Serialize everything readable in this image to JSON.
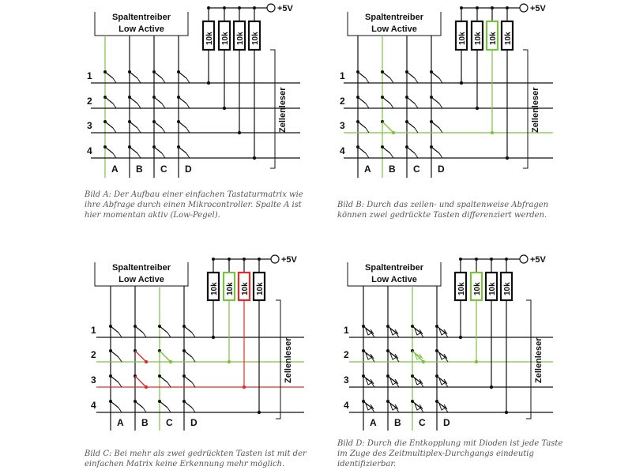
{
  "panels": [
    {
      "driver_line1": "Spaltentreiber",
      "driver_line2": "Low Active",
      "vcc": "+5V",
      "resistor": "10k",
      "reader": "Zellenleser",
      "rows": [
        "1",
        "2",
        "3",
        "4"
      ],
      "cols": [
        "A",
        "B",
        "C",
        "D"
      ],
      "caption": "Bild A: Der Aufbau einer einfachen Tastaturmatrix wie ihre Abfrage durch einen Mikrocontroller. Spalte A ist hier momentan aktiv (Low-Pegel).",
      "active_col": 0,
      "resistor_colors": [
        "#111111",
        "#111111",
        "#111111",
        "#111111"
      ],
      "green_row": -1,
      "red_row": -1,
      "pressed": [],
      "diodes": false
    },
    {
      "driver_line1": "Spaltentreiber",
      "driver_line2": "Low Active",
      "vcc": "+5V",
      "resistor": "10k",
      "reader": "Zellenleser",
      "rows": [
        "1",
        "2",
        "3",
        "4"
      ],
      "cols": [
        "A",
        "B",
        "C",
        "D"
      ],
      "caption": "Bild B: Durch das zeilen- und spaltenweise Abfragen können zwei gedrückte Tasten differenziert werden.",
      "active_col": 1,
      "resistor_colors": [
        "#111111",
        "#111111",
        "#7cc242",
        "#111111"
      ],
      "green_row": 2,
      "red_row": -1,
      "pressed": [
        {
          "row": 2,
          "col": 1,
          "color": "#7cc242"
        }
      ],
      "diodes": false
    },
    {
      "driver_line1": "Spaltentreiber",
      "driver_line2": "Low Active",
      "vcc": "+5V",
      "resistor": "10k",
      "reader": "Zellenleser",
      "rows": [
        "1",
        "2",
        "3",
        "4"
      ],
      "cols": [
        "A",
        "B",
        "C",
        "D"
      ],
      "caption": "Bild C: Bei mehr als zwei gedrückten Tasten ist mit der einfachen Matrix keine Erkennung mehr möglich.",
      "active_col": 2,
      "resistor_colors": [
        "#111111",
        "#7cc242",
        "#e32b2b",
        "#111111"
      ],
      "green_row": 1,
      "red_row": 2,
      "pressed": [
        {
          "row": 1,
          "col": 2,
          "color": "#7cc242"
        },
        {
          "row": 1,
          "col": 1,
          "color": "#e32b2b"
        },
        {
          "row": 2,
          "col": 1,
          "color": "#e32b2b"
        }
      ],
      "diodes": false
    },
    {
      "driver_line1": "Spaltentreiber",
      "driver_line2": "Low Active",
      "vcc": "+5V",
      "resistor": "10k",
      "reader": "Zellenleser",
      "rows": [
        "1",
        "2",
        "3",
        "4"
      ],
      "cols": [
        "A",
        "B",
        "C",
        "D"
      ],
      "caption": "Bild D: Durch die Entkopplung mit Dioden ist jede Taste im Zuge des Zeitmultiplex-Durchgangs eindeutig identifizierbar.",
      "active_col": 2,
      "resistor_colors": [
        "#111111",
        "#7cc242",
        "#111111",
        "#111111"
      ],
      "green_row": 1,
      "red_row": -1,
      "pressed": [
        {
          "row": 1,
          "col": 2,
          "color": "#7cc242"
        }
      ],
      "diodes": true
    }
  ]
}
